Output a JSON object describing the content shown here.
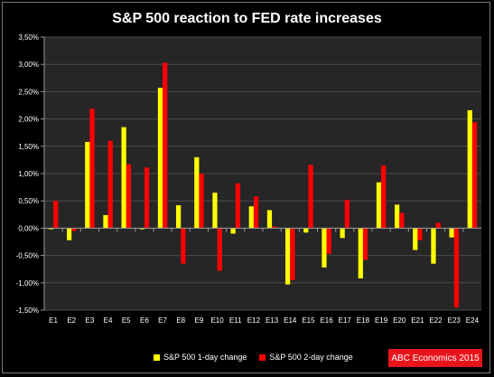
{
  "chart_data": {
    "type": "bar",
    "title": "S&P 500 reaction to FED rate increases",
    "categories": [
      "E1",
      "E2",
      "E3",
      "E4",
      "E5",
      "E6",
      "E7",
      "E8",
      "E9",
      "E10",
      "E11",
      "E12",
      "E13",
      "E14",
      "E15",
      "E16",
      "E17",
      "E18",
      "E19",
      "E20",
      "E21",
      "E22",
      "E23",
      "E24"
    ],
    "series": [
      {
        "name": "S&P 500 1-day change",
        "color": "#ffff00",
        "values": [
          -0.02,
          -0.22,
          1.58,
          0.24,
          1.85,
          -0.02,
          2.57,
          0.42,
          1.3,
          0.65,
          -0.1,
          0.4,
          0.33,
          -1.03,
          -0.08,
          -0.72,
          -0.18,
          -0.92,
          0.84,
          0.43,
          -0.4,
          -0.65,
          -0.17,
          2.16
        ]
      },
      {
        "name": "S&P 500 2-day change",
        "color": "#ff0000",
        "values": [
          0.5,
          -0.05,
          2.19,
          1.6,
          1.17,
          1.11,
          3.03,
          -0.65,
          1.0,
          -0.78,
          0.82,
          0.58,
          0.03,
          -0.95,
          1.16,
          -0.47,
          0.52,
          -0.58,
          1.15,
          0.28,
          -0.22,
          0.1,
          -1.45,
          1.94
        ]
      }
    ],
    "ylim": [
      -1.5,
      3.5
    ],
    "yticks": [
      "-1,50%",
      "-1,00%",
      "-0,50%",
      "0,00%",
      "0,50%",
      "1,00%",
      "1,50%",
      "2,00%",
      "2,50%",
      "3,00%",
      "3,50%"
    ],
    "ytick_values": [
      -1.5,
      -1.0,
      -0.5,
      0.0,
      0.5,
      1.0,
      1.5,
      2.0,
      2.5,
      3.0,
      3.5
    ],
    "grid": true,
    "legend_position": "bottom"
  },
  "badge": "ABC Economics 2015",
  "colors": {
    "plot_bg": "#262626",
    "gridline": "#4a4a4a",
    "axis": "#9a9a9a"
  }
}
